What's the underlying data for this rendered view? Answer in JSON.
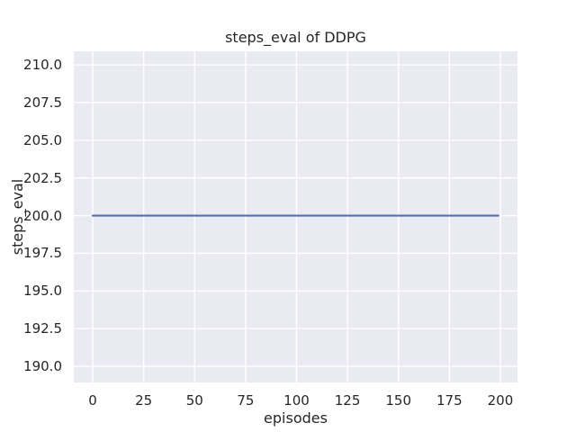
{
  "chart_data": {
    "type": "line",
    "title": "steps_eval of DDPG",
    "xlabel": "episodes",
    "ylabel": "steps_eval",
    "xlim": [
      -9.27,
      208.4
    ],
    "ylim": [
      188.93,
      210.9
    ],
    "xticks": [
      0,
      25,
      50,
      75,
      100,
      125,
      150,
      175,
      200
    ],
    "xtick_labels": [
      "0",
      "25",
      "50",
      "75",
      "100",
      "125",
      "150",
      "175",
      "200"
    ],
    "yticks": [
      190.0,
      192.5,
      195.0,
      197.5,
      200.0,
      202.5,
      205.0,
      207.5,
      210.0
    ],
    "ytick_labels": [
      "190.0",
      "192.5",
      "195.0",
      "197.5",
      "200.0",
      "202.5",
      "205.0",
      "207.5",
      "210.0"
    ],
    "grid": true,
    "legend_position": "none",
    "series": [
      {
        "name": "DDPG steps_eval",
        "color": "#4c72b0",
        "x": [
          0,
          199
        ],
        "y": [
          200,
          200
        ]
      }
    ],
    "colors": {
      "plot_background": "#eaeaf2",
      "grid_line": "#ffffff",
      "text": "#262626",
      "figure_background": "#ffffff"
    }
  }
}
